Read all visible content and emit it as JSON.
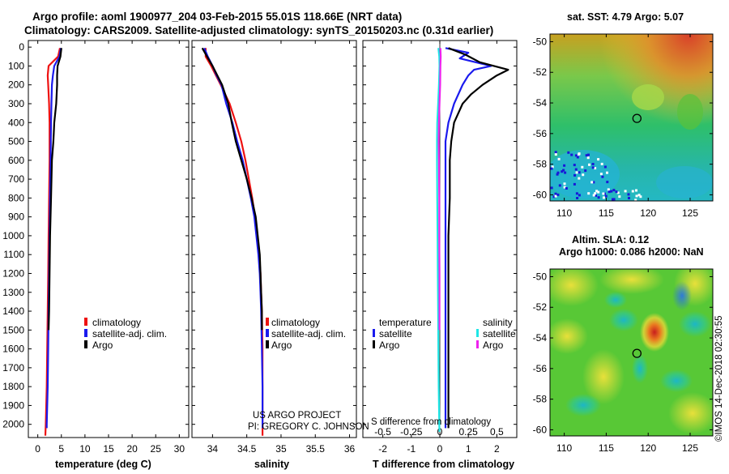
{
  "header": {
    "line1": "Argo profile: aoml 1900977_204 03-Feb-2015 55.01S 118.66E (NRT data)",
    "line2": "Climatology: CARS2009. Satellite-adjusted climatology: synTS_20150203.nc (0.31d earlier)"
  },
  "depth_ticks": [
    "0",
    "100",
    "200",
    "300",
    "400",
    "500",
    "600",
    "700",
    "800",
    "900",
    "1000",
    "1100",
    "1200",
    "1300",
    "1400",
    "1500",
    "1600",
    "1700",
    "1800",
    "1900",
    "2000"
  ],
  "colors": {
    "climatology": "#ee1111",
    "satellite": "#1a1aee",
    "argo": "#000000",
    "sal_sat": "#1ee6e6",
    "sal_argo": "#ee22ee"
  },
  "chart_data": [
    {
      "type": "line",
      "name": "temperature-profile",
      "xlabel": "temperature (deg C)",
      "xlim": [
        -2,
        32
      ],
      "ylim": [
        2070,
        -35
      ],
      "xticks": [
        0,
        5,
        10,
        15,
        20,
        25,
        30
      ],
      "legend": [
        "climatology",
        "satellite-adj. clim.",
        "Argo"
      ],
      "series": [
        {
          "name": "climatology",
          "depth": [
            5,
            50,
            100,
            150,
            200,
            300,
            400,
            600,
            800,
            1000,
            1200,
            1400,
            1600,
            1800,
            2000,
            2060
          ],
          "values": [
            4.7,
            4.3,
            2.3,
            2.1,
            2.2,
            2.4,
            2.5,
            2.5,
            2.4,
            2.3,
            2.2,
            2.1,
            2.0,
            1.9,
            1.7,
            1.6
          ]
        },
        {
          "name": "satellite-adj. clim.",
          "depth": [
            5,
            50,
            100,
            150,
            200,
            300,
            400,
            600,
            800,
            1000,
            1200,
            1400,
            1600,
            1800,
            2000,
            2020
          ],
          "values": [
            4.9,
            4.6,
            3.5,
            3.2,
            3.0,
            2.9,
            2.8,
            2.7,
            2.6,
            2.5,
            2.4,
            2.3,
            2.2,
            2.1,
            1.9,
            1.9
          ]
        },
        {
          "name": "Argo",
          "depth": [
            5,
            50,
            100,
            150,
            200,
            300,
            400,
            500,
            600,
            800,
            1000,
            1200,
            1400,
            1500
          ],
          "values": [
            5.0,
            4.8,
            4.2,
            4.1,
            4.1,
            3.9,
            3.5,
            3.3,
            3.0,
            2.8,
            2.6,
            2.5,
            2.4,
            2.3
          ]
        }
      ]
    },
    {
      "type": "line",
      "name": "salinity-profile",
      "xlabel": "salinity",
      "xlim": [
        33.7,
        36.1
      ],
      "ylim": [
        2070,
        -35
      ],
      "xticks": [
        34,
        34.5,
        35,
        35.5,
        36
      ],
      "legend": [
        "climatology",
        "satellite-adj. clim.",
        "Argo"
      ],
      "series": [
        {
          "name": "climatology",
          "depth": [
            5,
            50,
            100,
            150,
            200,
            300,
            400,
            500,
            600,
            700,
            800,
            900,
            1000,
            1100,
            1200,
            1300,
            1400,
            1600,
            1800,
            2000,
            2060
          ],
          "values": [
            33.9,
            33.9,
            33.98,
            34.05,
            34.12,
            34.25,
            34.34,
            34.42,
            34.48,
            34.53,
            34.58,
            34.62,
            34.65,
            34.68,
            34.7,
            34.71,
            34.72,
            34.73,
            34.73,
            34.73,
            34.73
          ]
        },
        {
          "name": "satellite-adj. clim.",
          "depth": [
            5,
            50,
            100,
            150,
            200,
            300,
            400,
            500,
            600,
            700,
            800,
            900,
            1000,
            1100,
            1200,
            1300,
            1400,
            1600,
            1800,
            2000,
            2020
          ],
          "values": [
            33.88,
            33.93,
            34.0,
            34.06,
            34.13,
            34.2,
            34.29,
            34.36,
            34.44,
            34.5,
            34.56,
            34.61,
            34.64,
            34.67,
            34.69,
            34.7,
            34.71,
            34.72,
            34.73,
            34.73,
            34.73
          ]
        },
        {
          "name": "Argo",
          "depth": [
            5,
            50,
            100,
            150,
            200,
            300,
            400,
            500,
            600,
            700,
            800,
            900,
            1000,
            1100,
            1200,
            1300,
            1400,
            1500
          ],
          "values": [
            33.85,
            33.92,
            34.0,
            34.07,
            34.14,
            34.23,
            34.28,
            34.34,
            34.42,
            34.5,
            34.57,
            34.63,
            34.66,
            34.69,
            34.7,
            34.71,
            34.72,
            34.72
          ]
        }
      ]
    },
    {
      "type": "line",
      "name": "difference-profile",
      "xlabel": "T difference from climatology",
      "top_label": "S difference from climatology",
      "xlim": [
        -2.7,
        2.7
      ],
      "ylim": [
        2070,
        -35
      ],
      "xticks": [
        -2,
        -1,
        0,
        1,
        2
      ],
      "s_ticks": [
        "-0.5",
        "-0.25",
        "0",
        "0.25",
        "0.5"
      ],
      "legend_temperature_title": "temperature",
      "legend_salinity_title": "salinity",
      "legend_temperature": [
        "satellite",
        "Argo"
      ],
      "legend_salinity": [
        "satellite",
        "Argo"
      ],
      "series": [
        {
          "name": "T satellite",
          "depth": [
            5,
            30,
            60,
            100,
            120,
            150,
            200,
            300,
            400,
            500,
            600,
            800,
            1000,
            1200,
            1400,
            1600,
            1800,
            2020
          ],
          "values": [
            0.2,
            1.0,
            0.7,
            1.8,
            1.2,
            1.0,
            0.8,
            0.5,
            0.3,
            0.2,
            0.2,
            0.2,
            0.2,
            0.2,
            0.2,
            0.2,
            0.2,
            0.2
          ]
        },
        {
          "name": "T Argo",
          "depth": [
            5,
            40,
            80,
            120,
            150,
            200,
            250,
            300,
            400,
            500,
            600,
            800,
            1000,
            1200,
            1400,
            1600,
            1800,
            2020
          ],
          "values": [
            0.3,
            0.9,
            1.4,
            2.4,
            2.0,
            1.5,
            1.1,
            0.8,
            0.5,
            0.4,
            0.35,
            0.35,
            0.3,
            0.3,
            0.3,
            0.3,
            0.3,
            0.3
          ]
        },
        {
          "name": "S satellite",
          "depth": [
            5,
            50,
            100,
            200,
            300,
            400,
            500,
            600,
            800,
            1000,
            1200,
            1400,
            1600,
            1800,
            2000,
            2040
          ],
          "values": [
            -0.05,
            -0.02,
            -0.01,
            -0.03,
            -0.06,
            -0.09,
            -0.1,
            -0.1,
            -0.09,
            -0.08,
            -0.07,
            -0.06,
            -0.05,
            -0.04,
            -0.02,
            -0.01
          ]
        },
        {
          "name": "S Argo",
          "depth": [
            5,
            50,
            100,
            200,
            300,
            400,
            500,
            600,
            800,
            1000,
            1200,
            1400,
            1500
          ],
          "values": [
            0.02,
            0.03,
            0.02,
            0.01,
            -0.01,
            -0.03,
            -0.04,
            -0.03,
            -0.02,
            -0.02,
            -0.01,
            -0.01,
            -0.01
          ]
        }
      ]
    }
  ],
  "maps": {
    "sst_title": "sat. SST: 4.79 Argo: 5.07",
    "sla_title1": "Altim. SLA: 0.12",
    "sla_title2": "Argo h1000: 0.086 h2000: NaN",
    "lat_ticks": [
      "-50",
      "-52",
      "-54",
      "-56",
      "-58",
      "-60"
    ],
    "lon_ticks": [
      "110",
      "115",
      "120",
      "125"
    ],
    "profile_marker": {
      "lon": 118.66,
      "lat": -55.01
    }
  },
  "credits": {
    "project": "US ARGO PROJECT",
    "pi": "PI: GREGORY C. JOHNSON",
    "imos": "©IMOS 14-Dec-2018 02:30:55"
  }
}
